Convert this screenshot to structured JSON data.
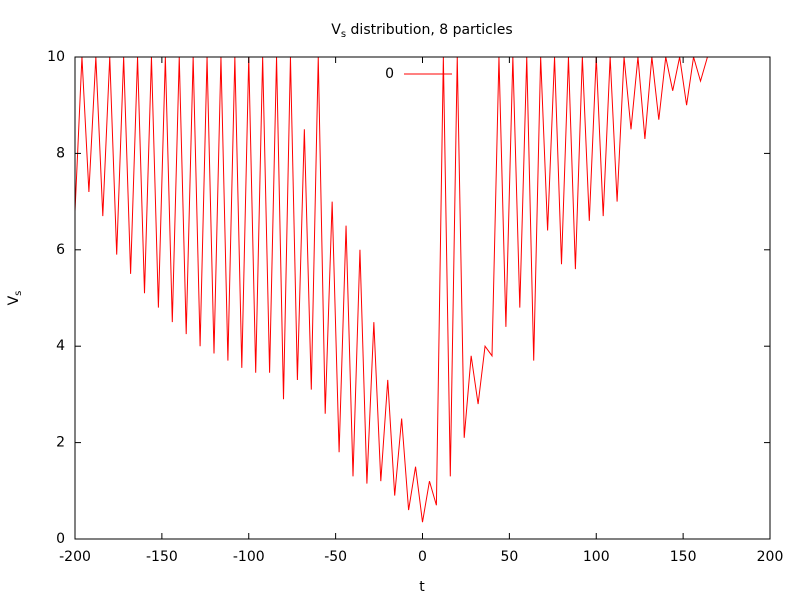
{
  "chart_data": {
    "type": "line",
    "title": [
      "V",
      "s",
      " distribution, 8 particles"
    ],
    "xlabel": "t",
    "ylabel": [
      "V",
      "s"
    ],
    "x": [
      -200,
      -196,
      -192,
      -188,
      -184,
      -180,
      -176,
      -172,
      -168,
      -164,
      -160,
      -156,
      -152,
      -148,
      -144,
      -140,
      -136,
      -132,
      -128,
      -124,
      -120,
      -116,
      -112,
      -108,
      -104,
      -100,
      -96,
      -92,
      -88,
      -84,
      -80,
      -76,
      -72,
      -68,
      -64,
      -60,
      -56,
      -52,
      -48,
      -44,
      -40,
      -36,
      -32,
      -28,
      -24,
      -20,
      -16,
      -12,
      -8,
      -4,
      0,
      4,
      8,
      12,
      16,
      20,
      24,
      28,
      32,
      36,
      40,
      44,
      48,
      52,
      56,
      60,
      64,
      68,
      72,
      76,
      80,
      84,
      88,
      92,
      96,
      100,
      104,
      108,
      112,
      116,
      120,
      124,
      128,
      132,
      136,
      140,
      144,
      148,
      152,
      156,
      160,
      164
    ],
    "series": [
      {
        "name": "0",
        "color": "#ff0000",
        "values": [
          6.8,
          10,
          7.2,
          10,
          6.7,
          10,
          5.9,
          10,
          5.5,
          10,
          5.1,
          10,
          4.8,
          10,
          4.5,
          10,
          4.25,
          10,
          4.0,
          10,
          3.85,
          10,
          3.7,
          10,
          3.55,
          10,
          3.45,
          10,
          3.45,
          10,
          2.9,
          10,
          3.3,
          8.5,
          3.1,
          10,
          2.6,
          7.0,
          1.8,
          6.5,
          1.3,
          6.0,
          1.15,
          4.5,
          1.2,
          3.3,
          0.9,
          2.5,
          0.6,
          1.5,
          0.35,
          1.2,
          0.7,
          10,
          1.3,
          10,
          2.1,
          3.8,
          2.8,
          4.0,
          3.8,
          10,
          4.4,
          10,
          4.8,
          10,
          3.7,
          10,
          6.4,
          10,
          5.7,
          10,
          5.6,
          10,
          6.6,
          10,
          6.7,
          10,
          7.0,
          10,
          8.5,
          10,
          8.3,
          10,
          8.7,
          10,
          9.3,
          10,
          9.0,
          10,
          9.5,
          10
        ]
      }
    ],
    "xlim": [
      -200,
      200
    ],
    "xticks": [
      -200,
      -150,
      -100,
      -50,
      0,
      50,
      100,
      150,
      200
    ],
    "ylim": [
      0,
      10
    ],
    "yticks": [
      0,
      2,
      4,
      6,
      8,
      10
    ],
    "grid": false,
    "legend": "top-center"
  }
}
